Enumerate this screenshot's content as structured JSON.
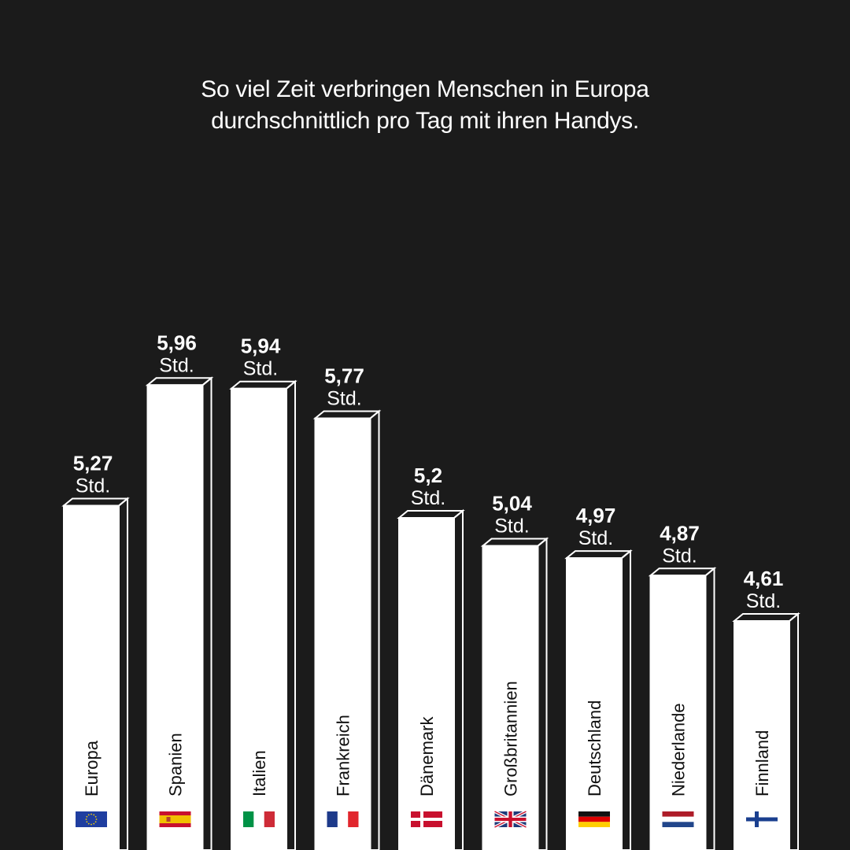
{
  "title_lines": [
    "So viel Zeit verbringen Menschen in Europa",
    "durchschnittlich pro Tag mit ihren Handys."
  ],
  "colors": {
    "background": "#1b1b1b",
    "bar": "#ffffff",
    "text": "#ffffff",
    "bar_text": "#111111"
  },
  "chart_data": {
    "type": "bar",
    "title": "So viel Zeit verbringen Menschen in Europa durchschnittlich pro Tag mit ihren Handys.",
    "unit": "Std.",
    "categories": [
      "Europa",
      "Spanien",
      "Italien",
      "Frankreich",
      "Dänemark",
      "Großbritannien",
      "Deutschland",
      "Niederlande",
      "Finnland"
    ],
    "values": [
      5.27,
      5.96,
      5.94,
      5.77,
      5.2,
      5.04,
      4.97,
      4.87,
      4.61
    ],
    "value_labels": [
      "5,27",
      "5,96",
      "5,94",
      "5,77",
      "5,2",
      "5,04",
      "4,97",
      "4,87",
      "4,61"
    ],
    "flags": [
      "eu-flag-icon",
      "spain-flag-icon",
      "italy-flag-icon",
      "france-flag-icon",
      "denmark-flag-icon",
      "uk-flag-icon",
      "germany-flag-icon",
      "netherlands-flag-icon",
      "finland-flag-icon"
    ],
    "xlabel": "",
    "ylabel": "",
    "grid": false,
    "legend": "none"
  }
}
